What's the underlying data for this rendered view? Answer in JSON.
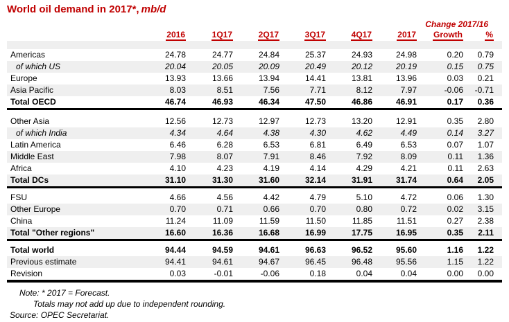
{
  "title": {
    "main": "World oil demand in 2017*,",
    "unit": "mb/d"
  },
  "change_header": "Change 2017/16",
  "columns": [
    "2016",
    "1Q17",
    "2Q17",
    "3Q17",
    "4Q17",
    "2017",
    "Growth",
    "%"
  ],
  "colors": {
    "accent_red": "#C00000",
    "stripe_gray": "#EFEFEF",
    "rule_black": "#000000"
  },
  "table": {
    "sections": [
      {
        "rows": [
          {
            "label": "Americas",
            "kind": "data",
            "shaded": false,
            "values": [
              "24.78",
              "24.77",
              "24.84",
              "25.37",
              "24.93",
              "24.98",
              "0.20",
              "0.79"
            ]
          },
          {
            "label": "of which US",
            "kind": "sub",
            "shaded": true,
            "values": [
              "20.04",
              "20.05",
              "20.09",
              "20.49",
              "20.12",
              "20.19",
              "0.15",
              "0.75"
            ]
          },
          {
            "label": "Europe",
            "kind": "data",
            "shaded": false,
            "values": [
              "13.93",
              "13.66",
              "13.94",
              "14.41",
              "13.81",
              "13.96",
              "0.03",
              "0.21"
            ]
          },
          {
            "label": "Asia Pacific",
            "kind": "data",
            "shaded": true,
            "values": [
              "8.03",
              "8.51",
              "7.56",
              "7.71",
              "8.12",
              "7.97",
              "-0.06",
              "-0.71"
            ]
          },
          {
            "label": "Total OECD",
            "kind": "total",
            "shaded": false,
            "values": [
              "46.74",
              "46.93",
              "46.34",
              "47.50",
              "46.86",
              "46.91",
              "0.17",
              "0.36"
            ]
          }
        ]
      },
      {
        "rows": [
          {
            "label": "Other Asia",
            "kind": "data",
            "shaded": false,
            "values": [
              "12.56",
              "12.73",
              "12.97",
              "12.73",
              "13.20",
              "12.91",
              "0.35",
              "2.80"
            ]
          },
          {
            "label": "of which India",
            "kind": "sub",
            "shaded": true,
            "values": [
              "4.34",
              "4.64",
              "4.38",
              "4.30",
              "4.62",
              "4.49",
              "0.14",
              "3.27"
            ]
          },
          {
            "label": "Latin America",
            "kind": "data",
            "shaded": false,
            "values": [
              "6.46",
              "6.28",
              "6.53",
              "6.81",
              "6.49",
              "6.53",
              "0.07",
              "1.07"
            ]
          },
          {
            "label": "Middle East",
            "kind": "data",
            "shaded": true,
            "values": [
              "7.98",
              "8.07",
              "7.91",
              "8.46",
              "7.92",
              "8.09",
              "0.11",
              "1.36"
            ]
          },
          {
            "label": "Africa",
            "kind": "data",
            "shaded": false,
            "values": [
              "4.10",
              "4.23",
              "4.19",
              "4.14",
              "4.29",
              "4.21",
              "0.11",
              "2.63"
            ]
          },
          {
            "label": "Total DCs",
            "kind": "total",
            "shaded": true,
            "values": [
              "31.10",
              "31.30",
              "31.60",
              "32.14",
              "31.91",
              "31.74",
              "0.64",
              "2.05"
            ]
          }
        ]
      },
      {
        "rows": [
          {
            "label": "FSU",
            "kind": "data",
            "shaded": false,
            "values": [
              "4.66",
              "4.56",
              "4.42",
              "4.79",
              "5.10",
              "4.72",
              "0.06",
              "1.30"
            ]
          },
          {
            "label": "Other Europe",
            "kind": "data",
            "shaded": true,
            "values": [
              "0.70",
              "0.71",
              "0.66",
              "0.70",
              "0.80",
              "0.72",
              "0.02",
              "3.15"
            ]
          },
          {
            "label": "China",
            "kind": "data",
            "shaded": false,
            "values": [
              "11.24",
              "11.09",
              "11.59",
              "11.50",
              "11.85",
              "11.51",
              "0.27",
              "2.38"
            ]
          },
          {
            "label": "Total \"Other regions\"",
            "kind": "total",
            "shaded": true,
            "values": [
              "16.60",
              "16.36",
              "16.68",
              "16.99",
              "17.75",
              "16.95",
              "0.35",
              "2.11"
            ]
          }
        ]
      },
      {
        "rows": [
          {
            "label": "Total world",
            "kind": "total",
            "shaded": false,
            "values": [
              "94.44",
              "94.59",
              "94.61",
              "96.63",
              "96.52",
              "95.60",
              "1.16",
              "1.22"
            ]
          },
          {
            "label": "Previous estimate",
            "kind": "data",
            "shaded": true,
            "values": [
              "94.41",
              "94.61",
              "94.67",
              "96.45",
              "96.48",
              "95.56",
              "1.15",
              "1.22"
            ]
          },
          {
            "label": "Revision",
            "kind": "data",
            "shaded": false,
            "values": [
              "0.03",
              "-0.01",
              "-0.06",
              "0.18",
              "0.04",
              "0.04",
              "0.00",
              "0.00"
            ]
          }
        ]
      }
    ]
  },
  "notes": {
    "line1": "Note: * 2017 = Forecast.",
    "line2": "Totals may not add up due to independent rounding.",
    "source": "Source: OPEC Secretariat."
  }
}
